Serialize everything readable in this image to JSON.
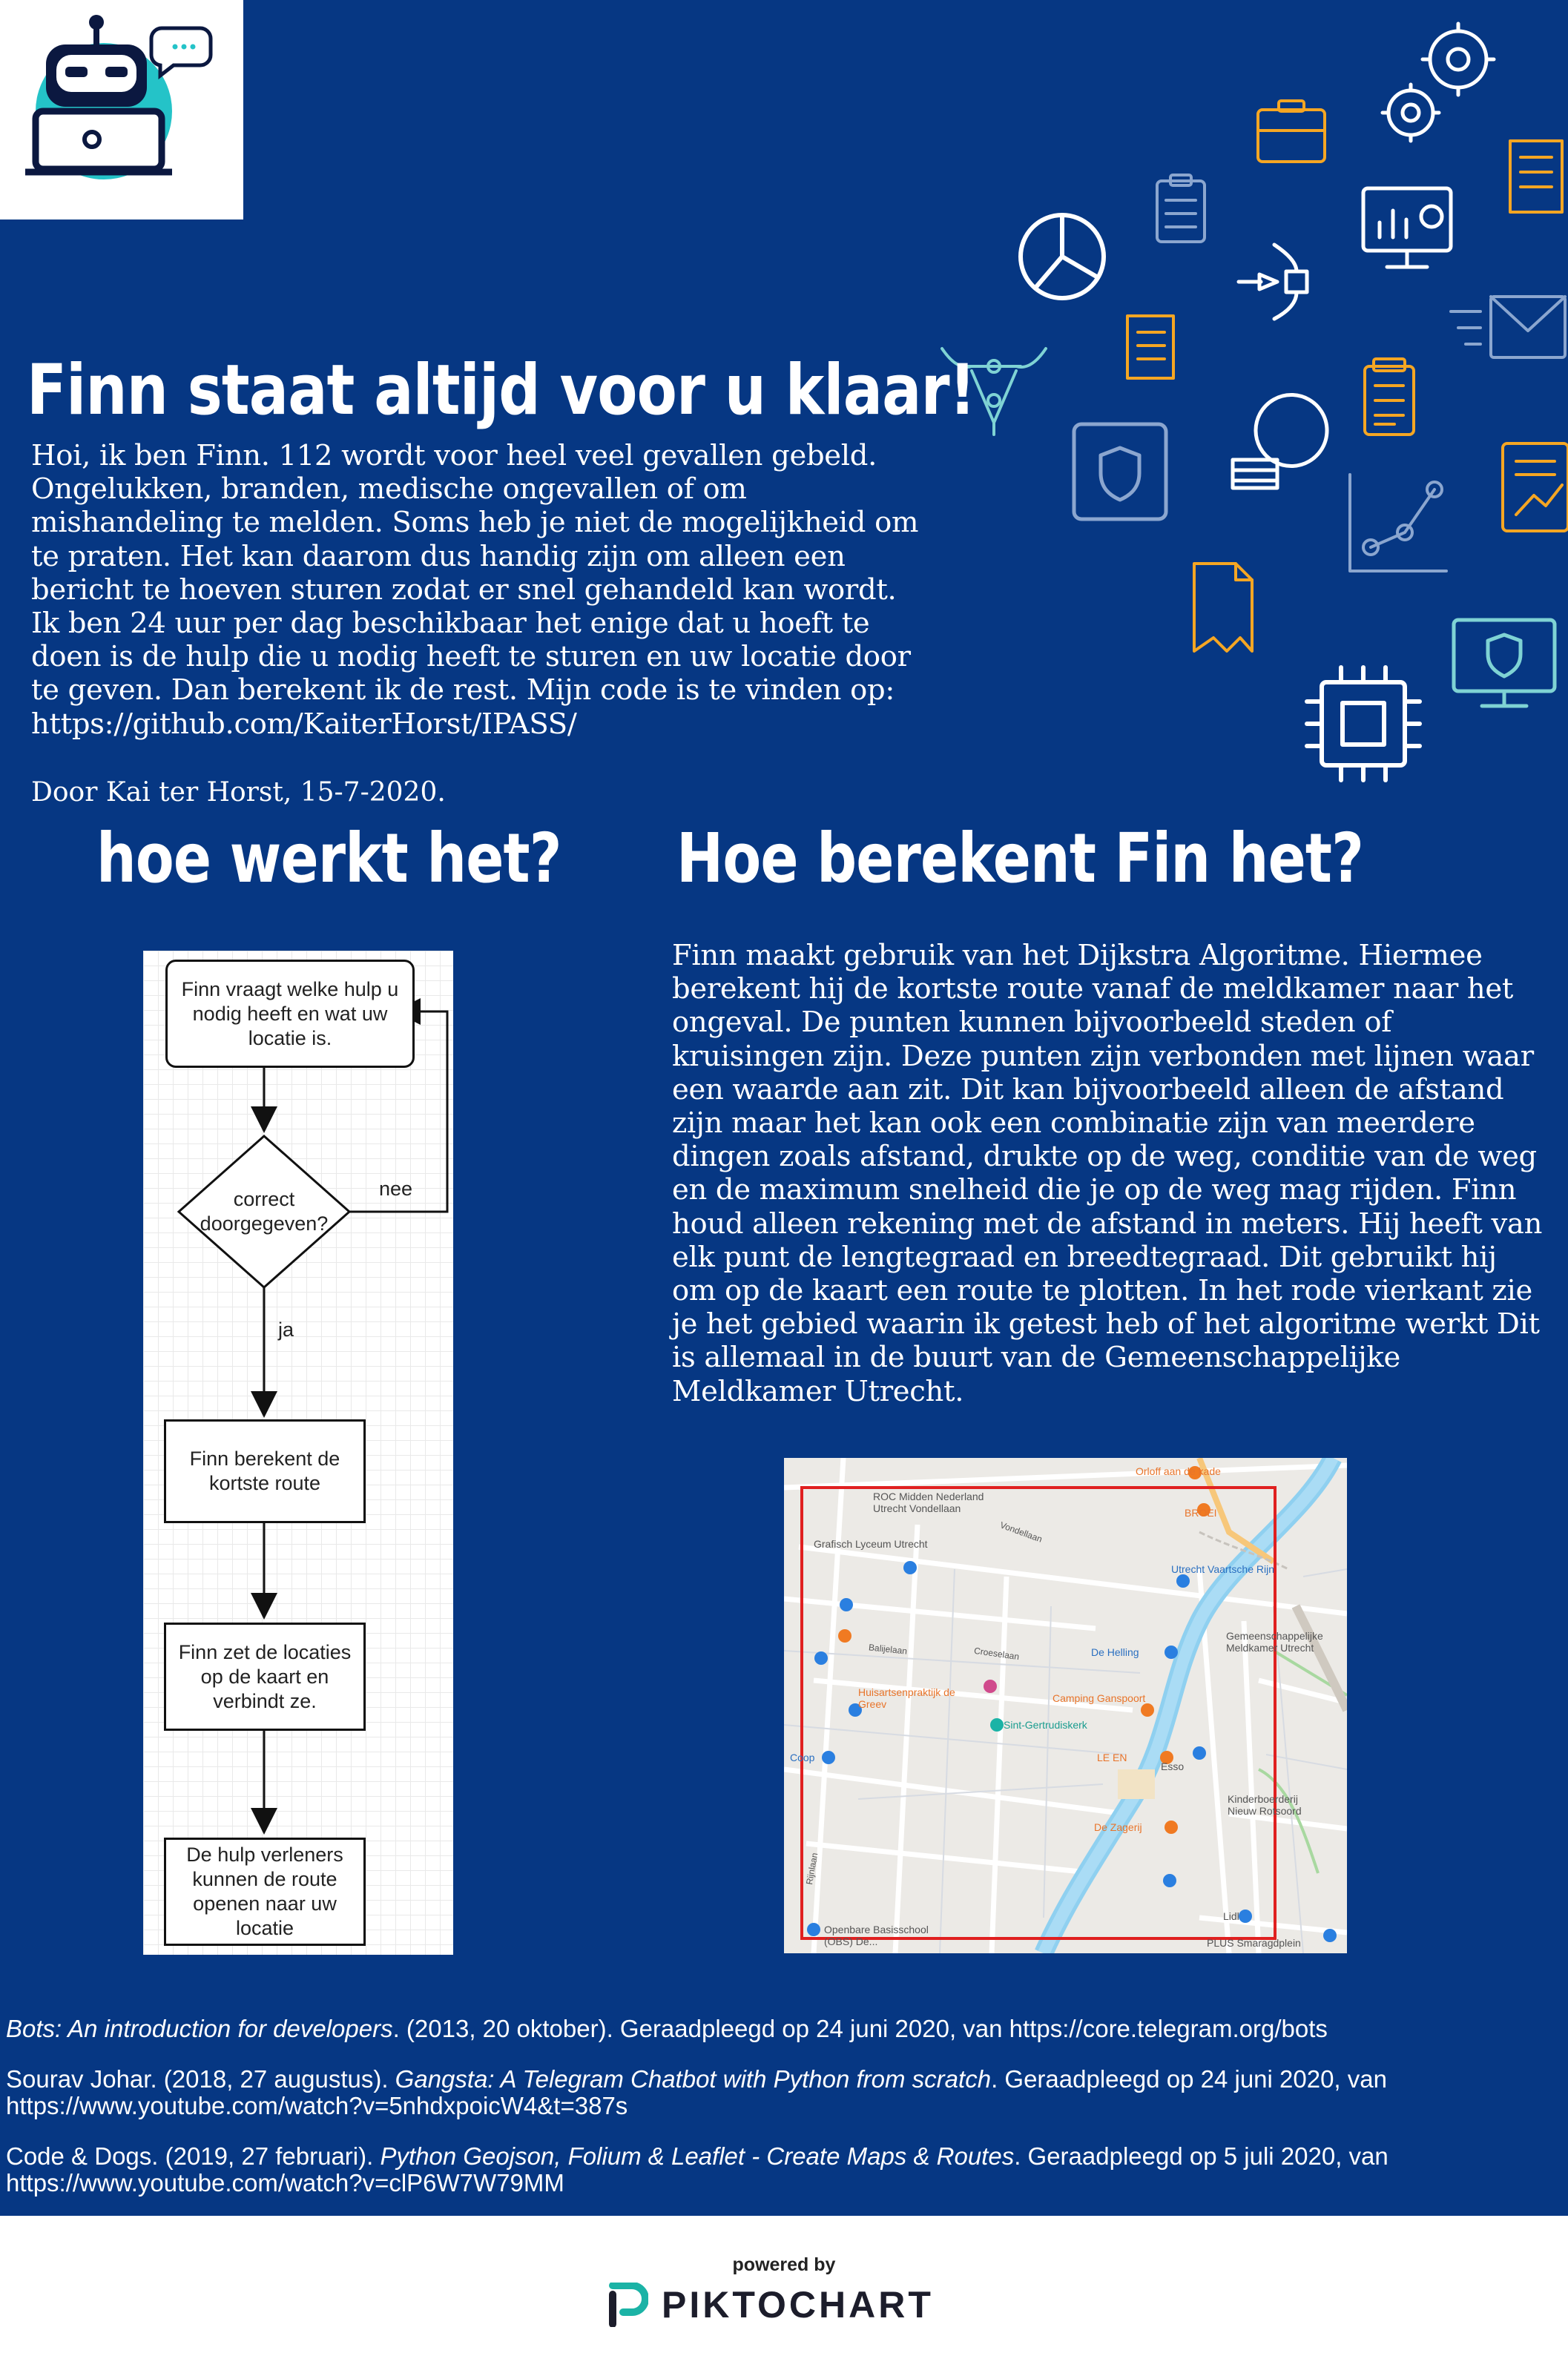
{
  "header": {
    "title": "Finn staat altijd voor u klaar!",
    "intro": "Hoi, ik ben Finn. 112 wordt voor heel veel gevallen gebeld. Ongelukken, branden, medische ongevallen of om mishandeling te melden. Soms heb je niet de mogelijkheid om te praten. Het kan daarom dus handig zijn om alleen een bericht te hoeven sturen zodat er snel gehandeld kan wordt. Ik ben 24 uur per dag beschikbaar het enige dat u hoeft te doen is de hulp die u nodig heeft te sturen en uw locatie door te geven. Dan berekent ik de rest. Mijn code is te vinden op: https://github.com/KaiterHorst/IPASS/",
    "byline": "Door Kai ter Horst, 15-7-2020."
  },
  "left_section": {
    "heading": "hoe werkt het?",
    "flowchart": {
      "step1": "Finn vraagt welke hulp u nodig heeft en wat uw locatie is.",
      "decision": "correct doorgegeven?",
      "no_label": "nee",
      "yes_label": "ja",
      "step2": "Finn berekent de kortste route",
      "step3": "Finn zet de locaties op de kaart en verbindt ze.",
      "step4": "De hulp verleners kunnen de route openen naar uw locatie"
    }
  },
  "right_section": {
    "heading": "Hoe berekent Fin het?",
    "body": "Finn maakt gebruik van het Dijkstra Algoritme. Hiermee berekent hij de kortste route vanaf de meldkamer naar het ongeval.  De punten kunnen bijvoorbeeld steden of kruisingen zijn. Deze punten zijn verbonden met lijnen waar een waarde aan zit. Dit kan bijvoorbeeld alleen de afstand zijn maar het kan ook een combinatie zijn van meerdere dingen zoals afstand, drukte op de weg, conditie van de weg en de maximum snelheid die je op de weg mag rijden. Finn houd alleen rekening met de afstand in meters. Hij heeft van elk punt de lengtegraad en breedtegraad. Dit gebruikt hij om op de kaart een route te plotten. In het rode vierkant zie je het gebied waarin ik getest heb of het algoritme werkt Dit is allemaal in de buurt van de Gemeenschappelijke Meldkamer Utrecht.",
    "map_labels": {
      "orloff": "Orloff aan de kade",
      "roc": "ROC Midden Nederland Utrecht Vondellaan",
      "grafisch": "Grafisch Lyceum Utrecht",
      "broei": "BROEI",
      "vaartsche": "Utrecht Vaartsche Rijn",
      "gemeenschappelijke": "Gemeenschappelijke Meldkamer Utrecht",
      "helling": "De Helling",
      "huisarts": "Huisartsenpraktijk de Greev",
      "camping": "Camping Ganspoort",
      "gertrudis": "Sint-Gertrudiskerk",
      "coop": "Coop",
      "leen": "LE EN",
      "esso": "Esso",
      "kinder": "Kinderboerderij Nieuw Rotsoord",
      "zagerij": "De Zagerij",
      "obs": "Openbare Basisschool (OBS) De...",
      "lidl": "Lidl",
      "plus": "PLUS Smaragdplein",
      "vondellaan": "Vondellaan",
      "croeselaan": "Croeselaan",
      "balijelaan": "Balijelaan",
      "rijnlaan": "Rijnlaan"
    }
  },
  "references": [
    {
      "italic": "Bots: An introduction for developers",
      "text": ". (2013, 20 oktober). Geraadpleegd op 24 juni 2020, van https://core.telegram.org/bots"
    },
    {
      "prefix": "Sourav Johar. (2018, 27 augustus). ",
      "italic": "Gangsta: A Telegram Chatbot with Python from scratch",
      "text": ". Geraadpleegd op 24 juni 2020, van https://www.youtube.com/watch?v=5nhdxpoicW4&t=387s"
    },
    {
      "prefix": "Code & Dogs. (2019, 27 februari). ",
      "italic": "Python Geojson, Folium & Leaflet - Create Maps & Routes",
      "text": ". Geraadpleegd op 5 juli 2020, van https://www.youtube.com/watch?v=clP6W7W79MM"
    }
  ],
  "footer": {
    "powered": "powered by",
    "brand": "PIKTOCHART"
  },
  "colors": {
    "background": "#063783",
    "text": "#ffffff",
    "map_highlight": "#e02020",
    "brand_teal": "#1bb3a6"
  },
  "icons": [
    "robot-icon",
    "chat-bubble-icon",
    "gear-icon",
    "briefcase-icon",
    "scroll-icon",
    "clipboard-icon",
    "monitor-chart-icon",
    "pie-chart-icon",
    "vector-node-icon",
    "pen-tool-icon",
    "envelope-icon",
    "shield-device-icon",
    "lightbulb-icon",
    "document-icon",
    "line-chart-icon",
    "cpu-chip-icon",
    "monitor-shield-icon",
    "report-icon"
  ]
}
